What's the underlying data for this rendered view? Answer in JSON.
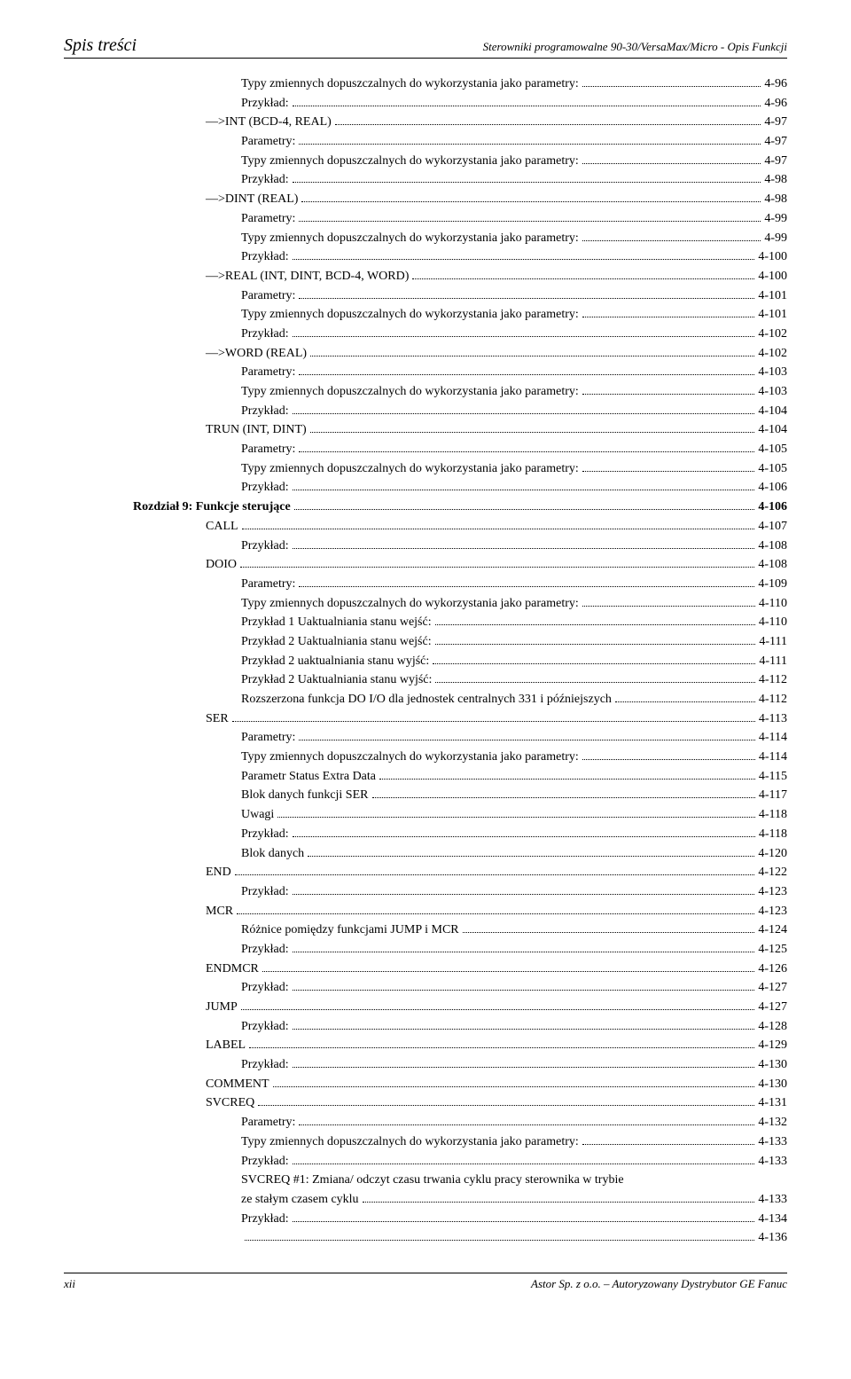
{
  "header": {
    "left": "Spis treści",
    "right": "Sterowniki programowalne 90-30/VersaMax/Micro - Opis Funkcji"
  },
  "footer": {
    "left": "xii",
    "right": "Astor Sp. z o.o. – Autoryzowany Dystrybutor GE Fanuc"
  },
  "toc": [
    {
      "indent": 2,
      "label": "Typy zmiennych dopuszczalnych do wykorzystania jako parametry:",
      "page": "4-96"
    },
    {
      "indent": 2,
      "label": "Przykład:",
      "page": "4-96"
    },
    {
      "indent": 1,
      "label": "—>INT    (BCD-4, REAL)",
      "page": "4-97"
    },
    {
      "indent": 2,
      "label": "Parametry:",
      "page": "4-97"
    },
    {
      "indent": 2,
      "label": "Typy zmiennych dopuszczalnych do wykorzystania jako parametry:",
      "page": "4-97"
    },
    {
      "indent": 2,
      "label": "Przykład:",
      "page": "4-98"
    },
    {
      "indent": 1,
      "label": "—>DINT    (REAL)",
      "page": "4-98"
    },
    {
      "indent": 2,
      "label": "Parametry:",
      "page": "4-99"
    },
    {
      "indent": 2,
      "label": "Typy zmiennych dopuszczalnych do wykorzystania jako parametry:",
      "page": "4-99"
    },
    {
      "indent": 2,
      "label": "Przykład:",
      "page": "4-100"
    },
    {
      "indent": 1,
      "label": "—>REAL    (INT,  DINT, BCD-4, WORD)",
      "page": "4-100"
    },
    {
      "indent": 2,
      "label": "Parametry:",
      "page": "4-101"
    },
    {
      "indent": 2,
      "label": "Typy zmiennych dopuszczalnych do wykorzystania jako parametry:",
      "page": "4-101"
    },
    {
      "indent": 2,
      "label": "Przykład:",
      "page": "4-102"
    },
    {
      "indent": 1,
      "label": "—>WORD     (REAL)",
      "page": "4-102"
    },
    {
      "indent": 2,
      "label": "Parametry:",
      "page": "4-103"
    },
    {
      "indent": 2,
      "label": "Typy zmiennych dopuszczalnych do wykorzystania jako parametry:",
      "page": "4-103"
    },
    {
      "indent": 2,
      "label": "Przykład:",
      "page": "4-104"
    },
    {
      "indent": 1,
      "label": "TRUN     (INT, DINT)",
      "page": "4-104"
    },
    {
      "indent": 2,
      "label": "Parametry:",
      "page": "4-105"
    },
    {
      "indent": 2,
      "label": "Typy zmiennych dopuszczalnych do wykorzystania jako parametry:",
      "page": "4-105"
    },
    {
      "indent": 2,
      "label": "Przykład:",
      "page": "4-106"
    },
    {
      "indent": "chapter",
      "label": "Rozdział 9:   Funkcje sterujące",
      "page": "4-106"
    },
    {
      "indent": 1,
      "label": "CALL",
      "page": "4-107"
    },
    {
      "indent": 2,
      "label": "Przykład:",
      "page": "4-108"
    },
    {
      "indent": 1,
      "label": "DOIO",
      "page": "4-108"
    },
    {
      "indent": 2,
      "label": "Parametry:",
      "page": "4-109"
    },
    {
      "indent": 2,
      "label": "Typy zmiennych dopuszczalnych do wykorzystania jako parametry:",
      "page": "4-110"
    },
    {
      "indent": 2,
      "label": "Przykład 1 Uaktualniania stanu wejść:",
      "page": "4-110"
    },
    {
      "indent": 2,
      "label": "Przykład 2 Uaktualniania stanu wejść:",
      "page": "4-111"
    },
    {
      "indent": 2,
      "label": "Przykład 2 uaktualniania stanu wyjść:",
      "page": "4-111"
    },
    {
      "indent": 2,
      "label": "Przykład 2 Uaktualniania stanu wyjść:",
      "page": "4-112"
    },
    {
      "indent": 2,
      "label": "Rozszerzona funkcja DO I/O dla jednostek centralnych 331 i późniejszych",
      "page": "4-112"
    },
    {
      "indent": 1,
      "label": "SER",
      "page": "4-113"
    },
    {
      "indent": 2,
      "label": "Parametry:",
      "page": "4-114"
    },
    {
      "indent": 2,
      "label": "Typy zmiennych dopuszczalnych do wykorzystania jako parametry:",
      "page": "4-114"
    },
    {
      "indent": 2,
      "label": "Parametr Status Extra Data",
      "page": "4-115"
    },
    {
      "indent": 2,
      "label": "Blok danych funkcji SER",
      "page": "4-117"
    },
    {
      "indent": 2,
      "label": "Uwagi",
      "page": "4-118"
    },
    {
      "indent": 2,
      "label": "Przykład:",
      "page": "4-118"
    },
    {
      "indent": 2,
      "label": "Blok danych",
      "page": "4-120"
    },
    {
      "indent": 1,
      "label": "END",
      "page": "4-122"
    },
    {
      "indent": 2,
      "label": "Przykład:",
      "page": "4-123"
    },
    {
      "indent": 1,
      "label": "MCR",
      "page": "4-123"
    },
    {
      "indent": 2,
      "label": "Różnice pomiędzy funkcjami JUMP i MCR",
      "page": "4-124"
    },
    {
      "indent": 2,
      "label": "Przykład:",
      "page": "4-125"
    },
    {
      "indent": 1,
      "label": "ENDMCR",
      "page": "4-126"
    },
    {
      "indent": 2,
      "label": "Przykład:",
      "page": "4-127"
    },
    {
      "indent": 1,
      "label": "JUMP",
      "page": "4-127"
    },
    {
      "indent": 2,
      "label": "Przykład:",
      "page": "4-128"
    },
    {
      "indent": 1,
      "label": "LABEL",
      "page": "4-129"
    },
    {
      "indent": 2,
      "label": "Przykład:",
      "page": "4-130"
    },
    {
      "indent": 1,
      "label": "COMMENT",
      "page": "4-130"
    },
    {
      "indent": 1,
      "label": "SVCREQ",
      "page": "4-131"
    },
    {
      "indent": 2,
      "label": "Parametry:",
      "page": "4-132"
    },
    {
      "indent": 2,
      "label": "Typy zmiennych dopuszczalnych do wykorzystania jako parametry:",
      "page": "4-133"
    },
    {
      "indent": 2,
      "label": "Przykład:",
      "page": "4-133"
    },
    {
      "indent": 2,
      "label": "SVCREQ #1:  Zmiana/ odczyt czasu trwania cyklu pracy sterownika w trybie",
      "page": ""
    },
    {
      "indent": 2,
      "label": "ze stałym czasem cyklu",
      "page": "4-133"
    },
    {
      "indent": 2,
      "label": "Przykład:",
      "page": "4-134"
    },
    {
      "indent": 2,
      "label": "",
      "page": "4-136",
      "extraPad": true
    }
  ]
}
